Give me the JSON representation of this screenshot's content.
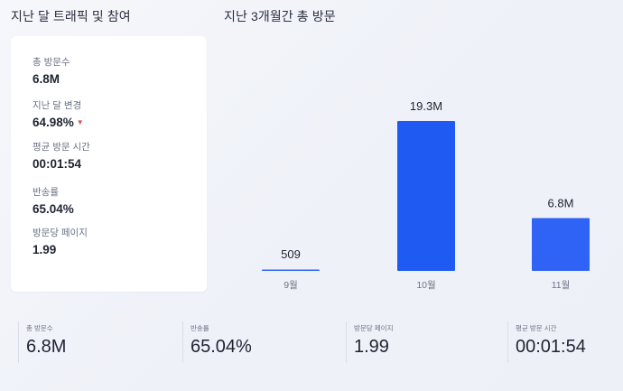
{
  "headers": {
    "left_title": "지난 달 트래픽 및 참여",
    "right_title": "지난 3개월간 총 방문"
  },
  "stats": {
    "total_visits_label": "총 방문수",
    "total_visits_value": "6.8M",
    "last_month_change_label": "지난 달 변경",
    "last_month_change_value": "64.98%",
    "avg_visit_time_label": "평균 방문 시간",
    "avg_visit_time_value": "00:01:54",
    "bounce_rate_label": "반송률",
    "bounce_rate_value": "65.04%",
    "pages_per_visit_label": "방문당 페이지",
    "pages_per_visit_value": "1.99"
  },
  "chart_data": {
    "type": "bar",
    "title": "지난 3개월간 총 방문",
    "categories": [
      "9월",
      "10월",
      "11월"
    ],
    "values": [
      509,
      19300000,
      6800000
    ],
    "data_labels": [
      "509",
      "19.3M",
      "6.8M"
    ],
    "colors": [
      "#2f64f4",
      "#1f5af3",
      "#2f63f5"
    ]
  },
  "summary": {
    "total_visits_label": "총 방문수",
    "total_visits_value": "6.8M",
    "bounce_rate_label": "반송률",
    "bounce_rate_value": "65.04%",
    "pages_per_visit_label": "방문당 페이지",
    "pages_per_visit_value": "1.99",
    "avg_visit_time_label": "평균 방문 시간",
    "avg_visit_time_value": "00:01:54"
  }
}
